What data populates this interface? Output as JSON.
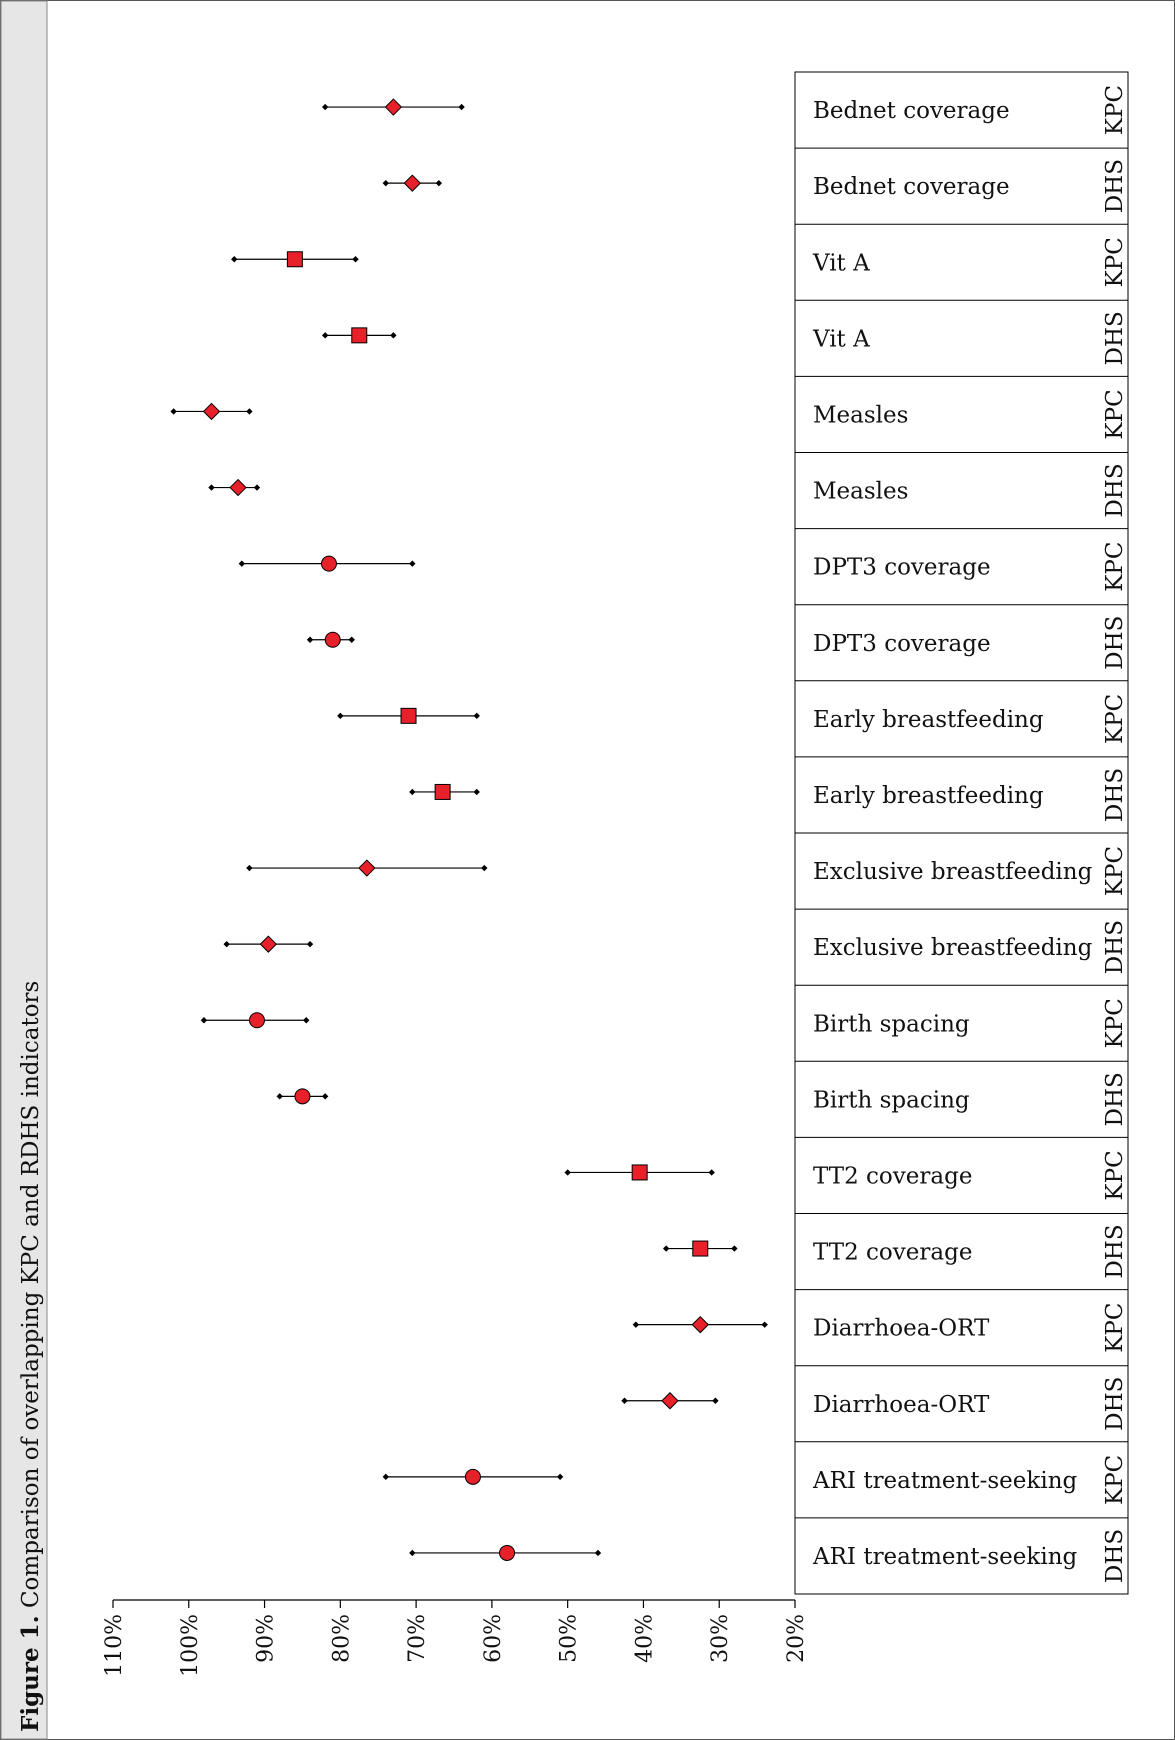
{
  "figure": {
    "label": "Figure 1.",
    "caption": "Comparison of overlapping KPC and RDHS indicators"
  },
  "colors": {
    "marker_fill": "#e8202a",
    "marker_stroke": "#000000",
    "caption_band": "#e6e6e6",
    "line": "#000000"
  },
  "chart_data": {
    "type": "forest",
    "orientation": "rotated",
    "value_axis": {
      "ticks": [
        "110%",
        "100%",
        "90%",
        "80%",
        "70%",
        "60%",
        "50%",
        "40%",
        "30%",
        "20%"
      ],
      "range": [
        110,
        20
      ],
      "unit": "%"
    },
    "grid": false,
    "rows": [
      {
        "indicator": "Bednet coverage",
        "source": "KPC",
        "marker": "diamond",
        "estimate": 73,
        "low": 64,
        "high": 82
      },
      {
        "indicator": "Bednet coverage",
        "source": "DHS",
        "marker": "diamond",
        "estimate": 70.5,
        "low": 67,
        "high": 74
      },
      {
        "indicator": "Vit A",
        "source": "KPC",
        "marker": "square",
        "estimate": 86,
        "low": 78,
        "high": 94
      },
      {
        "indicator": "Vit A",
        "source": "DHS",
        "marker": "square",
        "estimate": 77.5,
        "low": 73,
        "high": 82
      },
      {
        "indicator": "Measles",
        "source": "KPC",
        "marker": "diamond",
        "estimate": 97,
        "low": 92,
        "high": 102
      },
      {
        "indicator": "Measles",
        "source": "DHS",
        "marker": "diamond",
        "estimate": 93.5,
        "low": 91,
        "high": 97
      },
      {
        "indicator": "DPT3 coverage",
        "source": "KPC",
        "marker": "circle",
        "estimate": 81.5,
        "low": 70.5,
        "high": 93
      },
      {
        "indicator": "DPT3 coverage",
        "source": "DHS",
        "marker": "circle",
        "estimate": 81,
        "low": 78.5,
        "high": 84
      },
      {
        "indicator": "Early breastfeeding",
        "source": "KPC",
        "marker": "square",
        "estimate": 71,
        "low": 62,
        "high": 80
      },
      {
        "indicator": "Early breastfeeding",
        "source": "DHS",
        "marker": "square",
        "estimate": 66.5,
        "low": 62,
        "high": 70.5
      },
      {
        "indicator": "Exclusive breastfeeding",
        "source": "KPC",
        "marker": "diamond",
        "estimate": 76.5,
        "low": 61,
        "high": 92
      },
      {
        "indicator": "Exclusive breastfeeding",
        "source": "DHS",
        "marker": "diamond",
        "estimate": 89.5,
        "low": 84,
        "high": 95
      },
      {
        "indicator": "Birth spacing",
        "source": "KPC",
        "marker": "circle",
        "estimate": 91,
        "low": 84.5,
        "high": 98
      },
      {
        "indicator": "Birth spacing",
        "source": "DHS",
        "marker": "circle",
        "estimate": 85,
        "low": 82,
        "high": 88
      },
      {
        "indicator": "TT2 coverage",
        "source": "KPC",
        "marker": "square",
        "estimate": 40.5,
        "low": 31,
        "high": 50
      },
      {
        "indicator": "TT2 coverage",
        "source": "DHS",
        "marker": "square",
        "estimate": 32.5,
        "low": 28,
        "high": 37
      },
      {
        "indicator": "Diarrhoea-ORT",
        "source": "KPC",
        "marker": "diamond",
        "estimate": 32.5,
        "low": 24,
        "high": 41
      },
      {
        "indicator": "Diarrhoea-ORT",
        "source": "DHS",
        "marker": "diamond",
        "estimate": 36.5,
        "low": 30.5,
        "high": 42.5
      },
      {
        "indicator": "ARI treatment-seeking",
        "source": "KPC",
        "marker": "circle",
        "estimate": 62.5,
        "low": 51,
        "high": 74
      },
      {
        "indicator": "ARI treatment-seeking",
        "source": "DHS",
        "marker": "circle",
        "estimate": 58,
        "low": 46,
        "high": 70.5
      }
    ]
  }
}
